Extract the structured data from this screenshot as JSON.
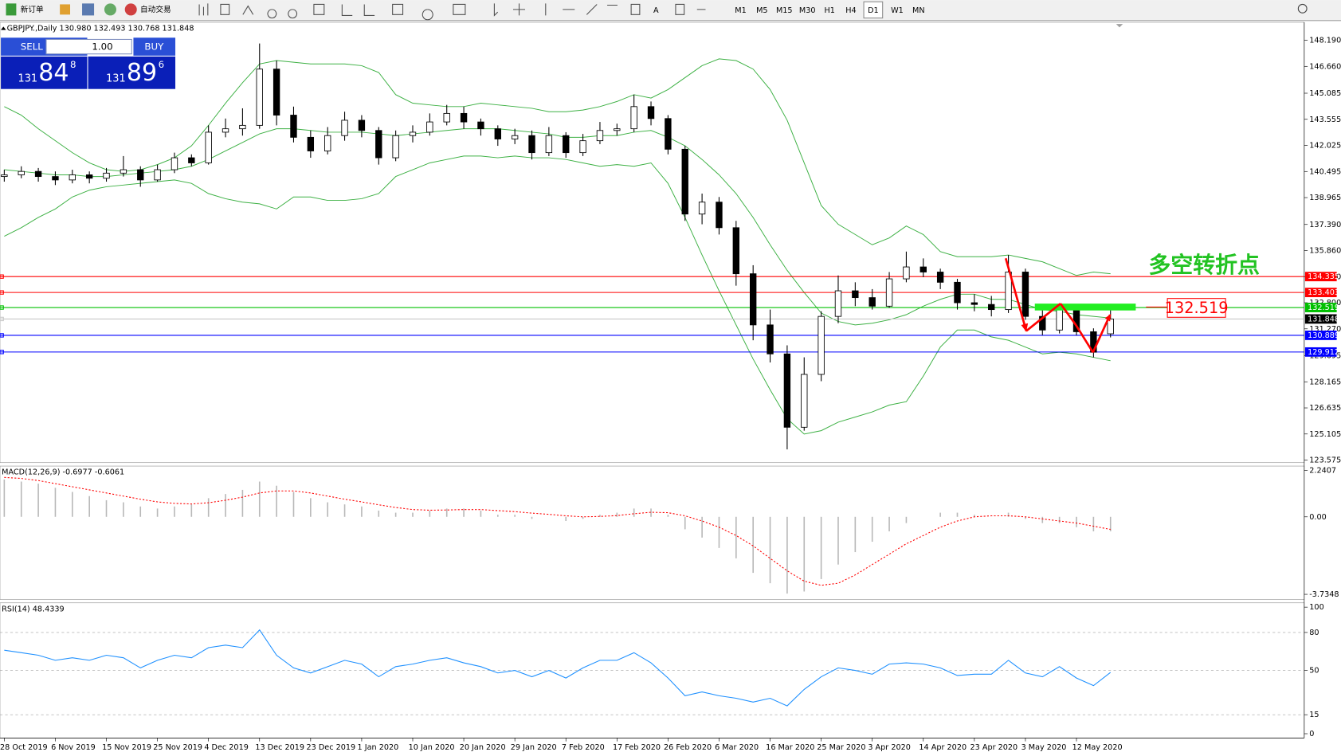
{
  "toolbar": {
    "buttons": [
      "新订单",
      "自动交易"
    ],
    "text_tool": "A",
    "timeframes": [
      "M1",
      "M5",
      "M15",
      "M30",
      "H1",
      "H4",
      "D1",
      "W1",
      "MN"
    ],
    "active_timeframe": "D1"
  },
  "trade_panel": {
    "sell": "SELL",
    "buy": "BUY",
    "lots": "1.00",
    "sell_price": {
      "big": "131",
      "main": "84",
      "pip": "8"
    },
    "buy_price": {
      "big": "131",
      "main": "89",
      "pip": "6"
    }
  },
  "chart_data": [
    {
      "type": "candlestick",
      "title": "GBPJPY.,Daily  130.980 132.493 130.768 131.848",
      "categories": [
        "28 Oct 2019",
        null,
        null,
        "6 Nov 2019",
        null,
        null,
        "15 Nov 2019",
        null,
        null,
        "25 Nov 2019",
        null,
        null,
        "4 Dec 2019",
        null,
        null,
        "13 Dec 2019",
        null,
        null,
        "23 Dec 2019",
        null,
        null,
        "1 Jan 2020",
        null,
        null,
        "10 Jan 2020",
        null,
        null,
        "20 Jan 2020",
        null,
        null,
        "29 Jan 2020",
        null,
        null,
        "7 Feb 2020",
        null,
        null,
        "17 Feb 2020",
        null,
        null,
        "26 Feb 2020",
        null,
        null,
        "6 Mar 2020",
        null,
        null,
        "16 Mar 2020",
        null,
        null,
        "25 Mar 2020",
        null,
        null,
        "3 Apr 2020",
        null,
        null,
        "14 Apr 2020",
        null,
        null,
        "23 Apr 2020",
        null,
        null,
        "3 May 2020",
        null,
        null,
        "12 May 2020",
        null,
        null
      ],
      "candles": [
        [
          140.2,
          140.6,
          139.9,
          140.3
        ],
        [
          140.3,
          140.8,
          140.1,
          140.5
        ],
        [
          140.5,
          140.7,
          139.9,
          140.2
        ],
        [
          140.2,
          140.5,
          139.7,
          140.0
        ],
        [
          140.0,
          140.6,
          139.8,
          140.3
        ],
        [
          140.3,
          140.5,
          139.8,
          140.1
        ],
        [
          140.1,
          140.7,
          139.9,
          140.4
        ],
        [
          140.4,
          141.4,
          140.2,
          140.6
        ],
        [
          140.6,
          140.8,
          139.6,
          140.0
        ],
        [
          140.0,
          140.9,
          139.9,
          140.6
        ],
        [
          140.6,
          141.6,
          140.4,
          141.3
        ],
        [
          141.3,
          141.5,
          140.8,
          141.0
        ],
        [
          141.0,
          143.2,
          140.9,
          142.8
        ],
        [
          142.8,
          143.6,
          142.5,
          143.0
        ],
        [
          143.0,
          144.2,
          142.6,
          143.2
        ],
        [
          143.2,
          148.0,
          143.0,
          146.5
        ],
        [
          146.5,
          147.0,
          143.2,
          143.8
        ],
        [
          143.8,
          144.3,
          142.2,
          142.5
        ],
        [
          142.5,
          142.9,
          141.3,
          141.7
        ],
        [
          141.7,
          143.1,
          141.5,
          142.6
        ],
        [
          142.6,
          144.0,
          142.3,
          143.5
        ],
        [
          143.5,
          143.8,
          142.5,
          142.9
        ],
        [
          142.9,
          143.1,
          140.9,
          141.3
        ],
        [
          141.3,
          142.9,
          141.1,
          142.6
        ],
        [
          142.6,
          143.2,
          142.2,
          142.8
        ],
        [
          142.8,
          143.9,
          142.6,
          143.4
        ],
        [
          143.4,
          144.4,
          143.2,
          143.9
        ],
        [
          143.9,
          144.3,
          143.0,
          143.4
        ],
        [
          143.4,
          143.6,
          142.6,
          143.0
        ],
        [
          143.0,
          143.2,
          142.0,
          142.4
        ],
        [
          142.4,
          143.0,
          142.1,
          142.6
        ],
        [
          142.6,
          142.9,
          141.2,
          141.6
        ],
        [
          141.6,
          143.1,
          141.4,
          142.6
        ],
        [
          142.6,
          142.8,
          141.3,
          141.6
        ],
        [
          141.6,
          142.7,
          141.4,
          142.3
        ],
        [
          142.3,
          143.4,
          142.1,
          142.9
        ],
        [
          142.9,
          143.3,
          142.6,
          143.0
        ],
        [
          143.0,
          145.0,
          142.8,
          144.3
        ],
        [
          144.3,
          144.6,
          143.2,
          143.6
        ],
        [
          143.6,
          143.8,
          141.5,
          141.8
        ],
        [
          141.8,
          142.0,
          137.6,
          138.0
        ],
        [
          138.0,
          139.2,
          137.4,
          138.7
        ],
        [
          138.7,
          139.0,
          136.8,
          137.2
        ],
        [
          137.2,
          137.6,
          133.8,
          134.5
        ],
        [
          134.5,
          135.0,
          130.6,
          131.5
        ],
        [
          131.5,
          132.4,
          129.3,
          129.8
        ],
        [
          129.8,
          130.3,
          124.2,
          125.5
        ],
        [
          125.5,
          129.6,
          125.3,
          128.6
        ],
        [
          128.6,
          132.3,
          128.2,
          132.0
        ],
        [
          132.0,
          134.4,
          131.6,
          133.5
        ],
        [
          133.5,
          134.0,
          132.6,
          133.1
        ],
        [
          133.1,
          133.6,
          132.4,
          132.6
        ],
        [
          132.6,
          134.6,
          132.5,
          134.2
        ],
        [
          134.2,
          135.8,
          134.0,
          134.9
        ],
        [
          134.9,
          135.4,
          134.3,
          134.6
        ],
        [
          134.6,
          134.8,
          133.6,
          134.0
        ],
        [
          134.0,
          134.2,
          132.4,
          132.8
        ],
        [
          132.8,
          133.3,
          132.3,
          132.7
        ],
        [
          132.7,
          133.2,
          132.0,
          132.4
        ],
        [
          132.4,
          135.6,
          132.2,
          134.6
        ],
        [
          134.6,
          134.8,
          131.8,
          132.0
        ],
        [
          132.0,
          132.5,
          130.9,
          131.2
        ],
        [
          131.2,
          132.6,
          131.0,
          132.4
        ],
        [
          132.4,
          132.6,
          130.9,
          131.1
        ],
        [
          131.1,
          131.3,
          129.6,
          129.9
        ],
        [
          130.98,
          132.493,
          130.768,
          131.848
        ]
      ],
      "bands": [
        {
          "color": "#3cb043",
          "values": [
            144.3,
            143.8,
            143.0,
            142.3,
            141.6,
            141.0,
            140.6,
            140.5,
            140.6,
            140.9,
            141.3,
            142.0,
            143.2,
            144.5,
            145.7,
            146.8,
            147.0,
            146.9,
            146.8,
            146.8,
            146.8,
            146.7,
            146.3,
            145.0,
            144.5,
            144.4,
            144.3,
            144.3,
            144.5,
            144.4,
            144.3,
            144.2,
            144.0,
            144.0,
            144.1,
            144.3,
            144.6,
            145.0,
            144.8,
            145.3,
            146.0,
            146.7,
            147.1,
            147.0,
            146.5,
            145.3,
            143.5,
            141.0,
            138.5,
            137.4,
            136.8,
            136.2,
            136.6,
            137.3,
            136.8,
            135.8,
            135.5,
            135.5,
            135.5,
            135.6,
            135.4,
            135.2,
            134.8,
            134.4,
            134.6,
            134.5
          ]
        },
        {
          "color": "#3cb043",
          "values": [
            140.6,
            140.5,
            140.4,
            140.3,
            140.3,
            140.2,
            140.2,
            140.3,
            140.4,
            140.5,
            140.6,
            140.8,
            141.2,
            141.7,
            142.2,
            142.7,
            143.0,
            143.0,
            142.9,
            142.8,
            142.8,
            142.8,
            142.7,
            142.6,
            142.7,
            142.8,
            142.9,
            143.0,
            143.0,
            143.0,
            142.9,
            142.8,
            142.7,
            142.5,
            142.5,
            142.6,
            142.6,
            142.8,
            142.9,
            142.5,
            142.0,
            141.2,
            140.3,
            139.2,
            137.8,
            136.2,
            134.7,
            133.4,
            132.2,
            131.7,
            131.5,
            131.6,
            131.8,
            132.1,
            132.6,
            133.0,
            133.3,
            133.3,
            133.0,
            133.0,
            132.7,
            132.4,
            132.3,
            132.1,
            132.0,
            131.9
          ]
        },
        {
          "color": "#3cb043",
          "values": [
            136.7,
            137.2,
            137.8,
            138.3,
            139.0,
            139.4,
            139.6,
            139.7,
            139.8,
            139.9,
            140.0,
            139.8,
            139.2,
            138.9,
            138.7,
            138.6,
            138.3,
            139.0,
            139.0,
            138.8,
            138.8,
            138.9,
            139.2,
            140.2,
            140.6,
            141.0,
            141.2,
            141.4,
            141.4,
            141.3,
            141.4,
            141.3,
            141.3,
            141.2,
            141.0,
            140.8,
            140.9,
            140.8,
            141.0,
            139.8,
            137.8,
            135.6,
            133.5,
            131.5,
            129.5,
            127.7,
            126.0,
            125.1,
            125.3,
            125.8,
            126.1,
            126.4,
            126.8,
            127.0,
            128.5,
            130.2,
            131.2,
            131.2,
            130.8,
            130.6,
            130.2,
            129.8,
            129.9,
            129.8,
            129.6,
            129.4
          ]
        }
      ],
      "levels": [
        {
          "value": 134.335,
          "color": "#ff0000",
          "label_color": "#ff0000"
        },
        {
          "value": 133.403,
          "color": "#ff0000",
          "label_color": "#ff0000"
        },
        {
          "value": 132.519,
          "color": "#00c000",
          "label_color": "#00c000"
        },
        {
          "value": 131.848,
          "color": "#c8c8c8",
          "label_color": "#000000"
        },
        {
          "value": 130.889,
          "color": "#0000ff",
          "label_color": "#0000ff"
        },
        {
          "value": 129.912,
          "color": "#0000ff",
          "label_color": "#0000ff"
        }
      ],
      "ylim": [
        123.575,
        148.19
      ],
      "yticks": [
        {
          "value": 148.19,
          "label": "148.190"
        },
        {
          "value": 146.66,
          "label": "146.660"
        },
        145.085,
        143.555,
        142.025,
        140.495,
        138.965,
        {
          "value": 137.39,
          "label": "137.390"
        },
        {
          "value": 135.86,
          "label": "135.860"
        },
        {
          "value": 134.33,
          "label": "134.330"
        },
        {
          "value": 132.8,
          "label": "132.800"
        },
        {
          "value": 131.27,
          "label": "131.270"
        },
        129.695,
        128.165,
        126.635,
        125.105,
        123.575
      ],
      "annotation": "多空转折点",
      "annotation_color": "#22c322"
    },
    {
      "type": "macd",
      "title": "MACD(12,26,9) -0.6977 -0.6061",
      "color": "#b8b8b8",
      "values": [
        1.8,
        1.7,
        1.6,
        1.4,
        1.2,
        1.0,
        0.8,
        0.7,
        0.5,
        0.4,
        0.5,
        0.6,
        0.9,
        1.1,
        1.3,
        1.7,
        1.5,
        1.2,
        0.9,
        0.7,
        0.6,
        0.5,
        0.3,
        0.2,
        0.2,
        0.3,
        0.4,
        0.4,
        0.3,
        0.1,
        0.1,
        -0.1,
        0,
        -0.2,
        -0.1,
        0.1,
        0.2,
        0.4,
        0.4,
        0.1,
        -0.6,
        -1.0,
        -1.5,
        -2.0,
        -2.7,
        -3.2,
        -3.7,
        -3.6,
        -3.0,
        -2.3,
        -1.7,
        -1.2,
        -0.7,
        -0.3,
        0,
        0.2,
        0.2,
        0.1,
        0,
        0.2,
        -0.1,
        -0.3,
        -0.3,
        -0.5,
        -0.7,
        -0.6977
      ],
      "signal": {
        "color": "#ff0000",
        "values": [
          1.9,
          1.85,
          1.75,
          1.6,
          1.45,
          1.3,
          1.15,
          1.0,
          0.85,
          0.72,
          0.65,
          0.62,
          0.68,
          0.8,
          0.95,
          1.15,
          1.25,
          1.25,
          1.15,
          1.0,
          0.85,
          0.72,
          0.58,
          0.45,
          0.35,
          0.32,
          0.33,
          0.35,
          0.35,
          0.3,
          0.25,
          0.18,
          0.12,
          0.05,
          0,
          0.02,
          0.06,
          0.15,
          0.22,
          0.2,
          0.05,
          -0.2,
          -0.5,
          -0.9,
          -1.4,
          -2.0,
          -2.6,
          -3.1,
          -3.3,
          -3.2,
          -2.8,
          -2.3,
          -1.8,
          -1.3,
          -0.9,
          -0.5,
          -0.2,
          0,
          0.05,
          0.05,
          0,
          -0.1,
          -0.2,
          -0.3,
          -0.45,
          -0.6061
        ]
      },
      "ylim": [
        -3.7348,
        2.2407
      ],
      "yticks": [
        2.2407,
        {
          "value": 0,
          "label": "0.00"
        },
        -3.7348
      ]
    },
    {
      "type": "line",
      "title": "RSI(14) 48.4339",
      "color": "#1e90ff",
      "values": [
        66,
        64,
        62,
        58,
        60,
        58,
        62,
        60,
        52,
        58,
        62,
        60,
        68,
        70,
        68,
        82,
        62,
        52,
        48,
        53,
        58,
        55,
        45,
        53,
        55,
        58,
        60,
        56,
        53,
        48,
        50,
        45,
        50,
        44,
        52,
        58,
        58,
        64,
        56,
        44,
        30,
        33,
        30,
        28,
        25,
        28,
        22,
        35,
        45,
        52,
        50,
        47,
        55,
        56,
        55,
        52,
        46,
        47,
        47,
        58,
        48,
        45,
        53,
        44,
        38,
        48.4339
      ],
      "ylim": [
        0,
        100
      ],
      "yticks": [
        100,
        80,
        50,
        15,
        0
      ]
    }
  ]
}
